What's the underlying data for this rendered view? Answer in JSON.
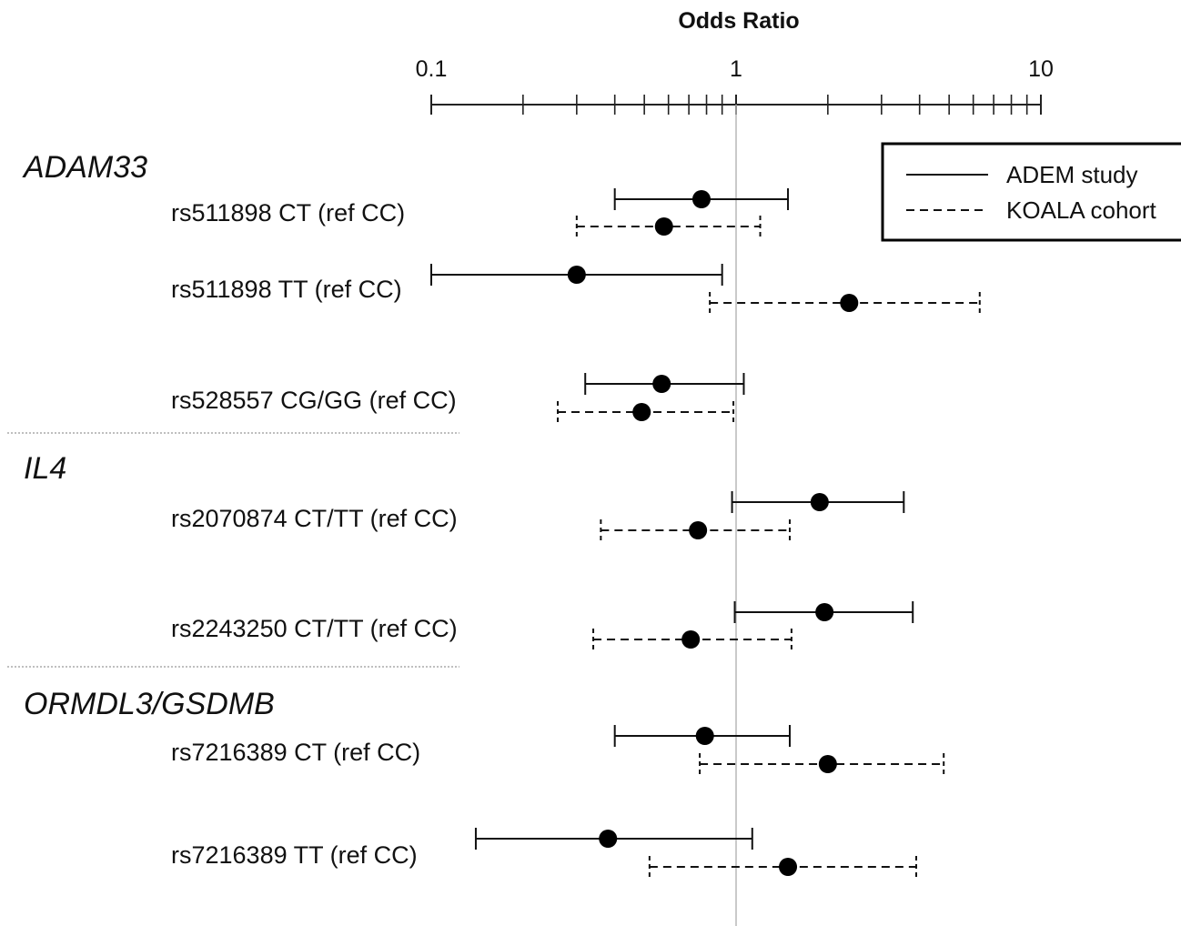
{
  "chart_data": {
    "type": "scatter",
    "title": "",
    "xlabel": "Odds Ratio",
    "ylabel": "",
    "x_scale": "log",
    "xlim": [
      0.1,
      10
    ],
    "major_ticks": [
      {
        "value": 0.1,
        "label": "0.1"
      },
      {
        "value": 1,
        "label": "1"
      },
      {
        "value": 10,
        "label": "10"
      }
    ],
    "minor_ticks": [
      0.2,
      0.3,
      0.4,
      0.5,
      0.6,
      0.7,
      0.8,
      0.9,
      2,
      3,
      4,
      5,
      6,
      7,
      8,
      9
    ],
    "reference_line": 1,
    "legend": {
      "position": "top-right",
      "entries": [
        {
          "name": "ADEM study",
          "style": "solid"
        },
        {
          "name": "KOALA cohort",
          "style": "dashed"
        }
      ]
    },
    "groups": [
      {
        "gene": "ADAM33",
        "rows": [
          {
            "label": "rs511898 CT (ref CC)",
            "adem": {
              "or": 0.77,
              "lo": 0.4,
              "hi": 1.48
            },
            "koala": {
              "or": 0.58,
              "lo": 0.3,
              "hi": 1.2
            }
          },
          {
            "label": "rs511898 TT (ref CC)",
            "adem": {
              "or": 0.3,
              "lo": 0.1,
              "hi": 0.9
            },
            "koala": {
              "or": 2.35,
              "lo": 0.82,
              "hi": 6.3
            }
          },
          {
            "label": "rs528557 CG/GG (ref CC)",
            "adem": {
              "or": 0.57,
              "lo": 0.32,
              "hi": 1.06
            },
            "koala": {
              "or": 0.49,
              "lo": 0.26,
              "hi": 0.98
            }
          }
        ]
      },
      {
        "gene": "IL4",
        "rows": [
          {
            "label": "rs2070874 CT/TT (ref CC)",
            "adem": {
              "or": 1.88,
              "lo": 0.97,
              "hi": 3.55
            },
            "koala": {
              "or": 0.75,
              "lo": 0.36,
              "hi": 1.5
            }
          },
          {
            "label": "rs2243250 CT/TT (ref CC)",
            "adem": {
              "or": 1.95,
              "lo": 0.99,
              "hi": 3.8
            },
            "koala": {
              "or": 0.71,
              "lo": 0.34,
              "hi": 1.52
            }
          }
        ]
      },
      {
        "gene": "ORMDL3/GSDMB",
        "rows": [
          {
            "label": "rs7216389 CT (ref CC)",
            "adem": {
              "or": 0.79,
              "lo": 0.4,
              "hi": 1.5
            },
            "koala": {
              "or": 2.0,
              "lo": 0.76,
              "hi": 4.8
            }
          },
          {
            "label": "rs7216389 TT (ref CC)",
            "adem": {
              "or": 0.38,
              "lo": 0.14,
              "hi": 1.13
            },
            "koala": {
              "or": 1.48,
              "lo": 0.52,
              "hi": 3.9
            }
          }
        ]
      }
    ]
  }
}
